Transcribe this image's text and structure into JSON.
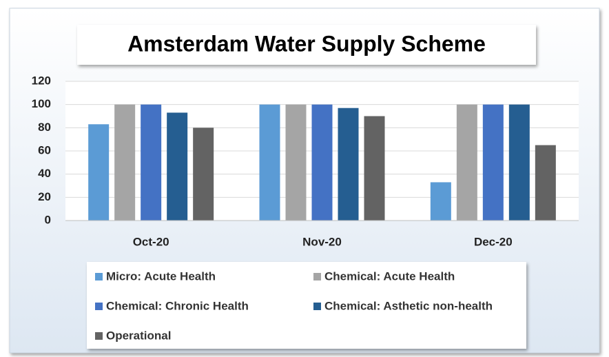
{
  "chart_data": {
    "type": "bar",
    "title": "Amsterdam Water Supply Scheme",
    "categories": [
      "Oct-20",
      "Nov-20",
      "Dec-20"
    ],
    "series": [
      {
        "name": "Micro: Acute Health",
        "color": "#5b9bd5",
        "values": [
          83,
          100,
          33
        ]
      },
      {
        "name": "Chemical: Acute Health",
        "color": "#a5a5a5",
        "values": [
          100,
          100,
          100
        ]
      },
      {
        "name": "Chemical: Chronic Health",
        "color": "#4472c4",
        "values": [
          100,
          100,
          100
        ]
      },
      {
        "name": "Chemical: Asthetic non-health",
        "color": "#255e91",
        "values": [
          93,
          97,
          100
        ]
      },
      {
        "name": "Operational",
        "color": "#636363",
        "values": [
          80,
          90,
          65
        ]
      }
    ],
    "ylim": [
      0,
      120
    ],
    "yticks": [
      0,
      20,
      40,
      60,
      80,
      100,
      120
    ],
    "grid": true,
    "legend": "bottom"
  }
}
